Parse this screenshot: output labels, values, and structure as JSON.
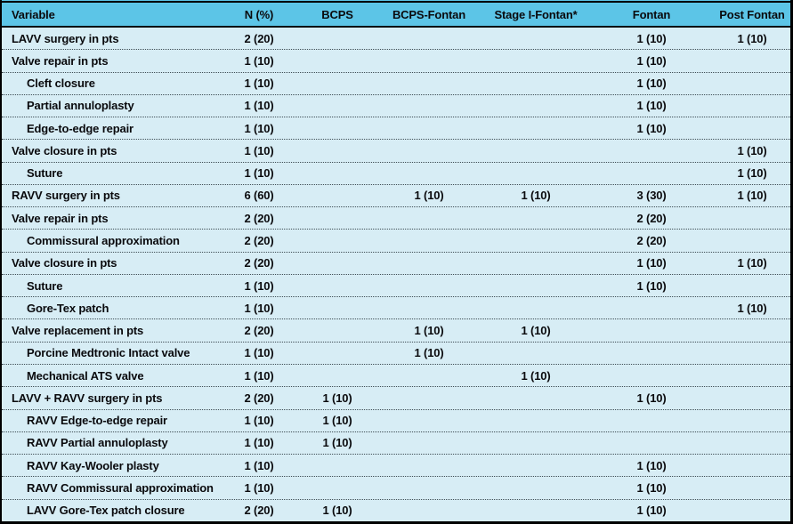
{
  "colors": {
    "header_bg": "#5cc5e7",
    "row_bg": "#d7edf5",
    "frame_border": "#000000",
    "row_divider": "#3f4e55",
    "text": "#0a0a0d"
  },
  "table": {
    "header": [
      "Variable",
      "N (%)",
      "BCPS",
      "BCPS-Fontan",
      "Stage I-Fontan*",
      "Fontan",
      "Post Fontan"
    ],
    "rows": [
      {
        "label": "LAVV surgery in pts",
        "indent": 0,
        "cells": [
          "2 (20)",
          "",
          "",
          "",
          "1 (10)",
          "1 (10)"
        ]
      },
      {
        "label": "Valve repair in pts",
        "indent": 0,
        "cells": [
          "1 (10)",
          "",
          "",
          "",
          "1 (10)",
          ""
        ]
      },
      {
        "label": "Cleft closure",
        "indent": 1,
        "cells": [
          "1 (10)",
          "",
          "",
          "",
          "1 (10)",
          ""
        ]
      },
      {
        "label": "Partial annuloplasty",
        "indent": 1,
        "cells": [
          "1 (10)",
          "",
          "",
          "",
          "1 (10)",
          ""
        ]
      },
      {
        "label": "Edge-to-edge repair",
        "indent": 1,
        "cells": [
          "1 (10)",
          "",
          "",
          "",
          "1 (10)",
          ""
        ]
      },
      {
        "label": "Valve closure in pts",
        "indent": 0,
        "cells": [
          "1 (10)",
          "",
          "",
          "",
          "",
          "1 (10)"
        ]
      },
      {
        "label": "Suture",
        "indent": 1,
        "cells": [
          "1 (10)",
          "",
          "",
          "",
          "",
          "1 (10)"
        ]
      },
      {
        "label": "RAVV surgery in pts",
        "indent": 0,
        "cells": [
          "6 (60)",
          "",
          "1 (10)",
          "1 (10)",
          "3 (30)",
          "1 (10)"
        ]
      },
      {
        "label": "Valve repair in pts",
        "indent": 0,
        "cells": [
          "2 (20)",
          "",
          "",
          "",
          "2 (20)",
          ""
        ]
      },
      {
        "label": "Commissural approximation",
        "indent": 1,
        "cells": [
          "2 (20)",
          "",
          "",
          "",
          "2 (20)",
          ""
        ]
      },
      {
        "label": "Valve closure in pts",
        "indent": 0,
        "cells": [
          "2 (20)",
          "",
          "",
          "",
          "1 (10)",
          "1 (10)"
        ]
      },
      {
        "label": "Suture",
        "indent": 1,
        "cells": [
          "1 (10)",
          "",
          "",
          "",
          "1 (10)",
          ""
        ]
      },
      {
        "label": "Gore-Tex patch",
        "indent": 1,
        "cells": [
          "1 (10)",
          "",
          "",
          "",
          "",
          "1 (10)"
        ]
      },
      {
        "label": "Valve replacement in pts",
        "indent": 0,
        "cells": [
          "2 (20)",
          "",
          "1 (10)",
          "1 (10)",
          "",
          ""
        ]
      },
      {
        "label": "Porcine Medtronic Intact valve",
        "indent": 1,
        "cells": [
          "1 (10)",
          "",
          "1 (10)",
          "",
          "",
          ""
        ]
      },
      {
        "label": "Mechanical ATS valve",
        "indent": 1,
        "cells": [
          "1 (10)",
          "",
          "",
          "1 (10)",
          "",
          ""
        ]
      },
      {
        "label": "LAVV + RAVV surgery in pts",
        "indent": 0,
        "cells": [
          "2 (20)",
          "1 (10)",
          "",
          "",
          "1 (10)",
          ""
        ]
      },
      {
        "label": "RAVV Edge-to-edge repair",
        "indent": 1,
        "cells": [
          "1 (10)",
          "1 (10)",
          "",
          "",
          "",
          ""
        ]
      },
      {
        "label": "RAVV Partial annuloplasty",
        "indent": 1,
        "cells": [
          "1 (10)",
          "1 (10)",
          "",
          "",
          "",
          ""
        ]
      },
      {
        "label": "RAVV Kay-Wooler plasty",
        "indent": 1,
        "cells": [
          "1 (10)",
          "",
          "",
          "",
          "1 (10)",
          ""
        ]
      },
      {
        "label": "RAVV Commissural approximation",
        "indent": 1,
        "cells": [
          "1 (10)",
          "",
          "",
          "",
          "1 (10)",
          ""
        ]
      },
      {
        "label": "LAVV Gore-Tex patch closure",
        "indent": 1,
        "cells": [
          "2 (20)",
          "1 (10)",
          "",
          "",
          "1 (10)",
          ""
        ]
      }
    ]
  }
}
